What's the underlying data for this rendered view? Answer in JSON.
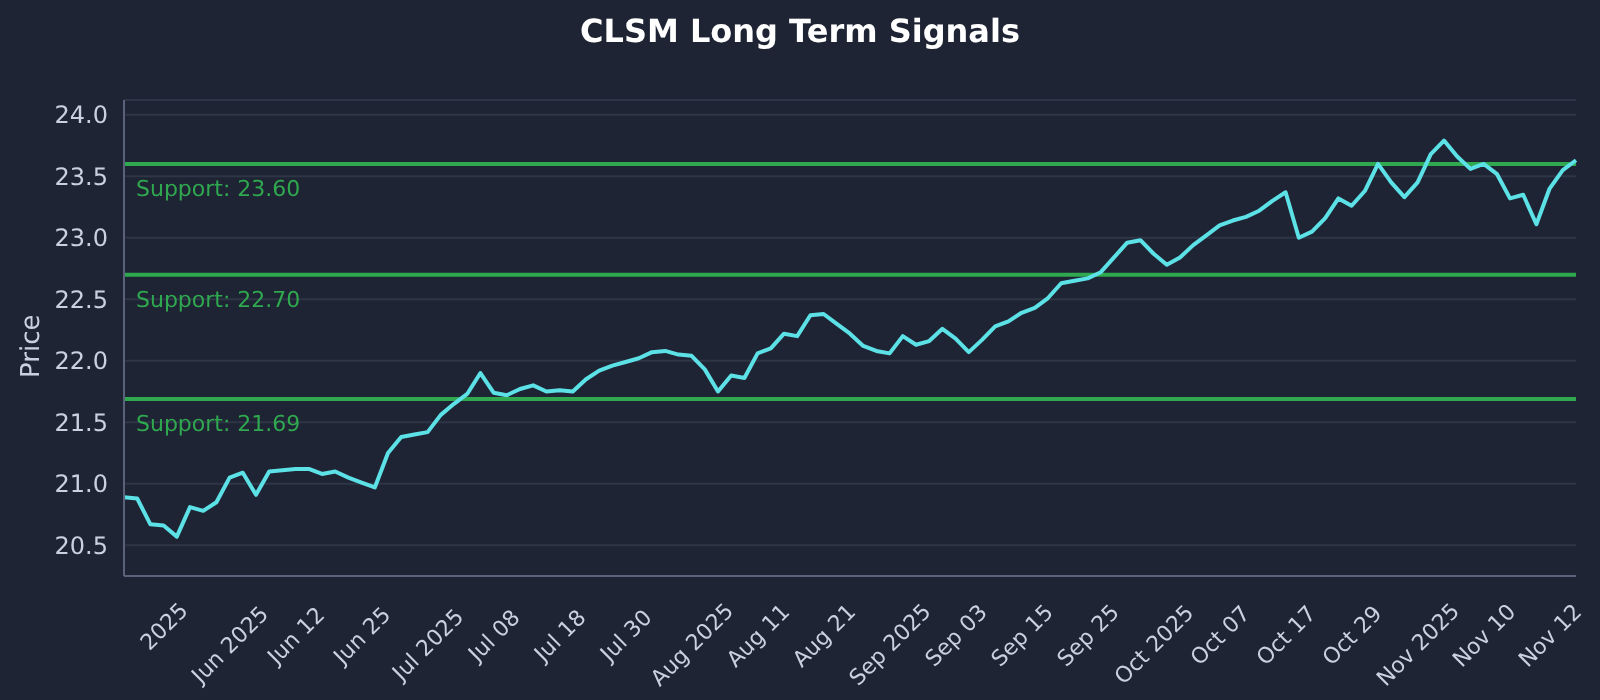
{
  "chart_data": {
    "type": "line",
    "title": "CLSM Long Term Signals",
    "ylabel": "Price",
    "categories": [
      null,
      null,
      null,
      "2025",
      null,
      null,
      null,
      null,
      "Jun 2025",
      null,
      null,
      null,
      null,
      "Jun 12",
      null,
      null,
      null,
      null,
      "Jun 25",
      null,
      null,
      null,
      null,
      "Jul 2025",
      null,
      null,
      null,
      null,
      "Jul 08",
      null,
      null,
      null,
      null,
      "Jul 18",
      null,
      null,
      null,
      null,
      "Jul 30",
      null,
      null,
      null,
      null,
      "Aug 2025",
      null,
      null,
      null,
      null,
      "Aug 11",
      null,
      null,
      null,
      null,
      "Aug 21",
      null,
      null,
      null,
      null,
      "Sep 2025",
      null,
      null,
      null,
      null,
      "Sep 03",
      null,
      null,
      null,
      null,
      "Sep 15",
      null,
      null,
      null,
      null,
      "Sep 25",
      null,
      null,
      null,
      null,
      "Oct 2025",
      null,
      null,
      null,
      null,
      "Oct 07",
      null,
      null,
      null,
      null,
      "Oct 17",
      null,
      null,
      null,
      null,
      "Oct 29",
      null,
      null,
      null,
      null,
      "Nov 2025",
      null,
      null,
      null,
      null,
      "Nov 10",
      null,
      null,
      null,
      null,
      "Nov 12",
      null,
      null
    ],
    "series": [
      {
        "color": "#5ce1e6",
        "values": [
          20.89,
          20.88,
          20.67,
          20.66,
          20.57,
          20.81,
          20.78,
          20.85,
          21.05,
          21.09,
          20.91,
          21.1,
          21.11,
          21.12,
          21.12,
          21.08,
          21.1,
          21.05,
          21.01,
          20.97,
          21.25,
          21.38,
          21.4,
          21.42,
          21.56,
          21.65,
          21.73,
          21.9,
          21.74,
          21.72,
          21.77,
          21.8,
          21.75,
          21.76,
          21.75,
          21.85,
          21.92,
          21.96,
          21.99,
          22.02,
          22.07,
          22.08,
          22.05,
          22.04,
          21.93,
          21.75,
          21.88,
          21.86,
          22.06,
          22.1,
          22.22,
          22.2,
          22.37,
          22.38,
          22.3,
          22.22,
          22.12,
          22.08,
          22.06,
          22.2,
          22.13,
          22.16,
          22.26,
          22.18,
          22.07,
          22.17,
          22.28,
          22.32,
          22.39,
          22.43,
          22.51,
          22.63,
          22.65,
          22.67,
          22.72,
          22.84,
          22.96,
          22.98,
          22.87,
          22.78,
          22.84,
          22.94,
          23.02,
          23.1,
          23.14,
          23.17,
          23.22,
          23.3,
          23.37,
          23.0,
          23.05,
          23.16,
          23.32,
          23.26,
          23.38,
          23.6,
          23.45,
          23.33,
          23.45,
          23.68,
          23.79,
          23.66,
          23.56,
          23.6,
          23.52,
          23.32,
          23.35,
          23.11,
          23.4,
          23.55,
          23.63
        ]
      }
    ],
    "ylim": [
      20.25,
      24.12
    ],
    "yticks": [
      20.5,
      {
        "value": 21,
        "label": "21.0"
      },
      21.5,
      {
        "value": 22,
        "label": "22.0"
      },
      22.5,
      {
        "value": 23,
        "label": "23.0"
      },
      23.5,
      {
        "value": 24,
        "label": "24.0"
      }
    ],
    "grid": "y",
    "legend": false,
    "marker": "none",
    "line_style": "solid",
    "ref_lines": [
      {
        "axis": "y",
        "value": 23.6,
        "label": "Support: 23.60",
        "color": "#2fa84f"
      },
      {
        "axis": "y",
        "value": 22.7,
        "label": "Support: 22.70",
        "color": "#2fa84f"
      },
      {
        "axis": "y",
        "value": 21.69,
        "label": "Support: 21.69",
        "color": "#2fa84f"
      }
    ]
  }
}
